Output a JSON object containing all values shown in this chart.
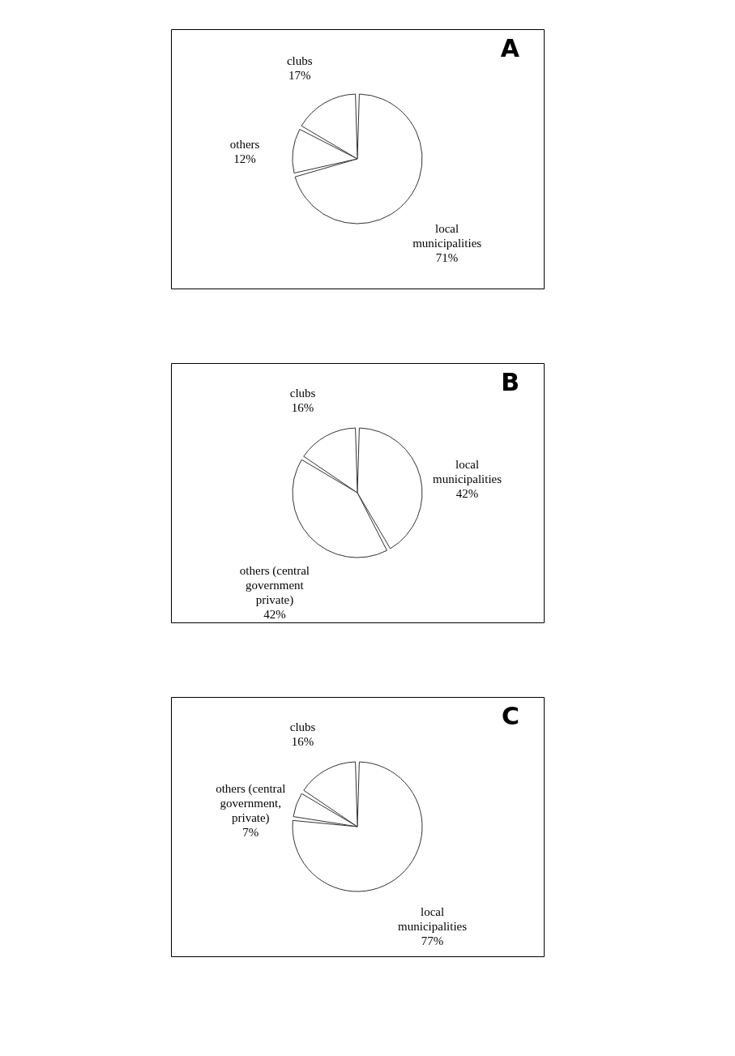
{
  "chart_data": [
    {
      "type": "pie",
      "title": "A",
      "categories": [
        "local municipalities",
        "others",
        "clubs"
      ],
      "values": [
        71,
        12,
        17
      ],
      "value_labels": [
        "71%",
        "12%",
        "17%"
      ],
      "colors": [
        "#ffffff",
        "#ffffff",
        "#ffffff"
      ],
      "legend": false
    },
    {
      "type": "pie",
      "title": "B",
      "categories": [
        "local municipalities",
        "others (central government private)",
        "clubs"
      ],
      "values": [
        42,
        42,
        16
      ],
      "value_labels": [
        "42%",
        "42%",
        "16%"
      ],
      "colors": [
        "#ffffff",
        "#ffffff",
        "#ffffff"
      ],
      "legend": false
    },
    {
      "type": "pie",
      "title": "C",
      "categories": [
        "local municipalities",
        "others (central government, private)",
        "clubs"
      ],
      "values": [
        77,
        7,
        16
      ],
      "value_labels": [
        "77%",
        "7%",
        "16%"
      ],
      "colors": [
        "#ffffff",
        "#ffffff",
        "#ffffff"
      ],
      "legend": false
    }
  ]
}
